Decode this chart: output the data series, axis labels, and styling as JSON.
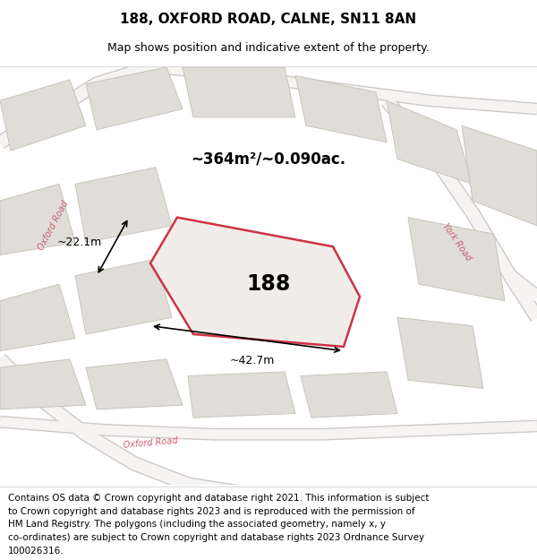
{
  "title": "188, OXFORD ROAD, CALNE, SN11 8AN",
  "subtitle": "Map shows position and indicative extent of the property.",
  "area_text": "~364m²/~0.090ac.",
  "property_number": "188",
  "dim_width": "~42.7m",
  "dim_height": "~22.1m",
  "bg_color": "#edecea",
  "building_fill": "#e0ddd8",
  "building_stroke": "#c8c4bc",
  "prop_fill": "#f0ede8",
  "prop_stroke": "#cc3344",
  "road_fill": "#f5f4f2",
  "road_edge": "#d0c8c8",
  "road_label_color": "#cc6070",
  "footer_lines": [
    "Contains OS data © Crown copyright and database right 2021. This information is subject",
    "to Crown copyright and database rights 2023 and is reproduced with the permission of",
    "HM Land Registry. The polygons (including the associated geometry, namely x, y",
    "co-ordinates) are subject to Crown copyright and database rights 2023 Ordnance Survey",
    "100026316."
  ],
  "title_fontsize": 11,
  "subtitle_fontsize": 9,
  "footer_fontsize": 7.5
}
